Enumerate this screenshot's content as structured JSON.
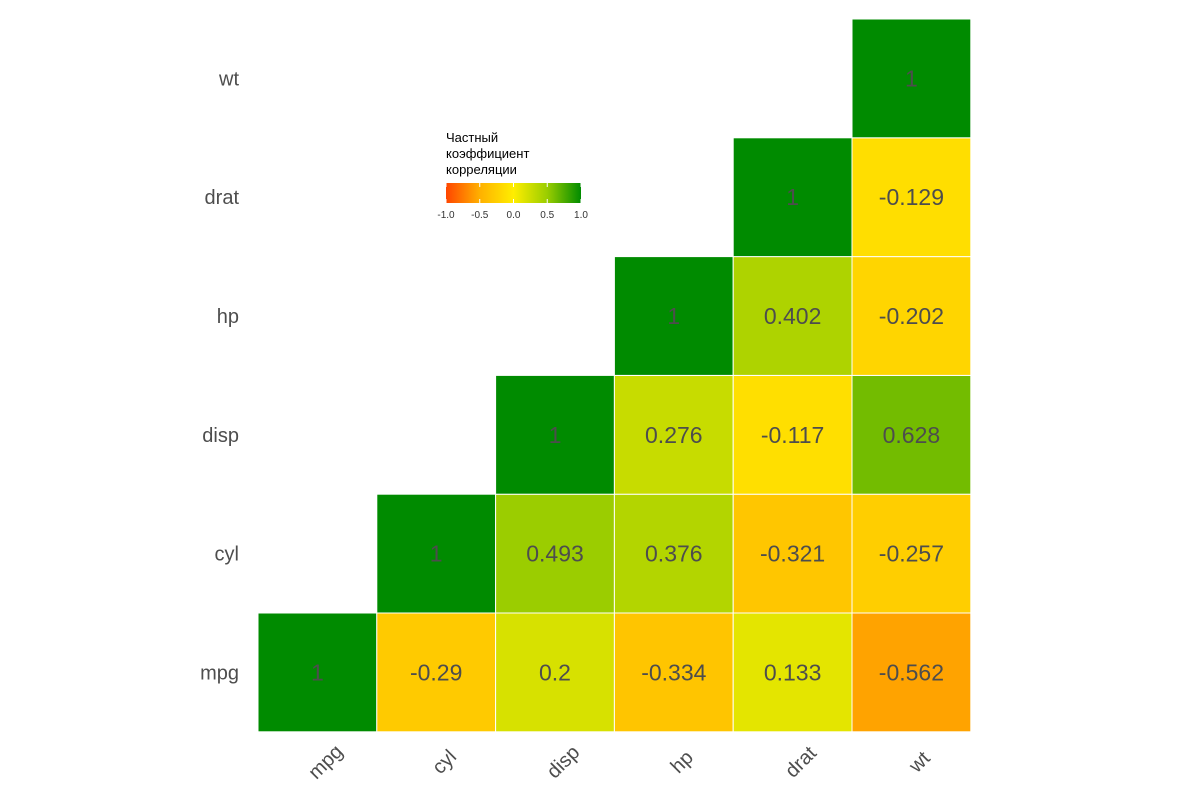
{
  "chart_data": {
    "type": "heatmap",
    "title": "",
    "xlabel": "",
    "ylabel": "",
    "variables": [
      "mpg",
      "cyl",
      "disp",
      "hp",
      "drat",
      "wt"
    ],
    "cells": [
      {
        "x": "mpg",
        "y": "mpg",
        "value": 1,
        "label": "1"
      },
      {
        "x": "cyl",
        "y": "mpg",
        "value": -0.29,
        "label": "-0.29"
      },
      {
        "x": "disp",
        "y": "mpg",
        "value": 0.2,
        "label": "0.2"
      },
      {
        "x": "hp",
        "y": "mpg",
        "value": -0.334,
        "label": "-0.334"
      },
      {
        "x": "drat",
        "y": "mpg",
        "value": 0.133,
        "label": "0.133"
      },
      {
        "x": "wt",
        "y": "mpg",
        "value": -0.562,
        "label": "-0.562"
      },
      {
        "x": "cyl",
        "y": "cyl",
        "value": 1,
        "label": "1"
      },
      {
        "x": "disp",
        "y": "cyl",
        "value": 0.493,
        "label": "0.493"
      },
      {
        "x": "hp",
        "y": "cyl",
        "value": 0.376,
        "label": "0.376"
      },
      {
        "x": "drat",
        "y": "cyl",
        "value": -0.321,
        "label": "-0.321"
      },
      {
        "x": "wt",
        "y": "cyl",
        "value": -0.257,
        "label": "-0.257"
      },
      {
        "x": "disp",
        "y": "disp",
        "value": 1,
        "label": "1"
      },
      {
        "x": "hp",
        "y": "disp",
        "value": 0.276,
        "label": "0.276"
      },
      {
        "x": "drat",
        "y": "disp",
        "value": -0.117,
        "label": "-0.117"
      },
      {
        "x": "wt",
        "y": "disp",
        "value": 0.628,
        "label": "0.628"
      },
      {
        "x": "hp",
        "y": "hp",
        "value": 1,
        "label": "1"
      },
      {
        "x": "drat",
        "y": "hp",
        "value": 0.402,
        "label": "0.402"
      },
      {
        "x": "wt",
        "y": "hp",
        "value": -0.202,
        "label": "-0.202"
      },
      {
        "x": "drat",
        "y": "drat",
        "value": 1,
        "label": "1"
      },
      {
        "x": "wt",
        "y": "drat",
        "value": -0.129,
        "label": "-0.129"
      },
      {
        "x": "wt",
        "y": "wt",
        "value": 1,
        "label": "1"
      }
    ],
    "color_scale": {
      "min": -1,
      "max": 1,
      "stops": [
        {
          "value": -1.0,
          "color": "#ff4500"
        },
        {
          "value": -0.5,
          "color": "#ffb000"
        },
        {
          "value": 0.0,
          "color": "#ffee00"
        },
        {
          "value": 0.5,
          "color": "#9acd00"
        },
        {
          "value": 1.0,
          "color": "#008b00"
        }
      ]
    },
    "legend": {
      "title_lines": [
        "Частный",
        "коэффициент",
        "корреляции"
      ],
      "ticks": [
        "-1.0",
        "-0.5",
        "0.0",
        "0.5",
        "1.0"
      ],
      "tick_values": [
        -1.0,
        -0.5,
        0.0,
        0.5,
        1.0
      ],
      "placement": "inside-top-center"
    },
    "grid": false,
    "cell_border_color": "#ffffff"
  }
}
